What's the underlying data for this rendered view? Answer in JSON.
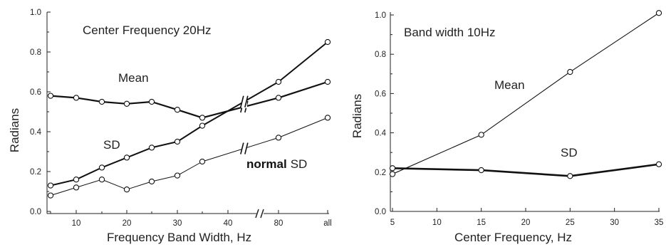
{
  "chart_data": [
    {
      "type": "line",
      "title": "Center Frequency  20Hz",
      "xlabel": "Frequency Band Width, Hz",
      "ylabel": "Radians",
      "ylim": [
        0,
        1.0
      ],
      "yticks": [
        "0.0",
        "0.2",
        "0.4",
        "0.6",
        "0.8",
        "1.0"
      ],
      "xticks": [
        "10",
        "20",
        "30",
        "40",
        "80",
        "all"
      ],
      "x_axis_break": "between 40 and 80",
      "categories": [
        "5",
        "10",
        "15",
        "20",
        "25",
        "30",
        "35",
        "40",
        "80",
        "all"
      ],
      "series": [
        {
          "name": "Mean",
          "values": [
            0.58,
            0.57,
            0.55,
            0.54,
            0.55,
            0.51,
            0.47,
            null,
            0.57,
            0.65
          ]
        },
        {
          "name": "SD",
          "values": [
            0.13,
            0.16,
            0.22,
            0.27,
            0.32,
            0.35,
            0.43,
            null,
            0.65,
            0.85
          ]
        },
        {
          "name": "normal SD",
          "values": [
            0.08,
            0.12,
            0.16,
            0.11,
            0.15,
            0.18,
            0.25,
            null,
            0.37,
            0.47
          ]
        }
      ],
      "series_labels": {
        "mean": "Mean",
        "sd": "SD",
        "normal": "normal",
        "normal_sd": "SD"
      }
    },
    {
      "type": "line",
      "title": "Band width  10Hz",
      "xlabel": "Center Frequency, Hz",
      "ylabel": "Radians",
      "ylim": [
        0,
        1.0
      ],
      "xlim": [
        5,
        35
      ],
      "yticks": [
        "0.0",
        "0.2",
        "0.4",
        "0.6",
        "0.8",
        "1.0"
      ],
      "xticks": [
        "5",
        "10",
        "15",
        "20",
        "25",
        "30",
        "35"
      ],
      "series": [
        {
          "name": "Mean",
          "x": [
            5,
            15,
            25,
            35
          ],
          "values": [
            0.19,
            0.39,
            0.71,
            1.01
          ]
        },
        {
          "name": "SD",
          "x": [
            5,
            15,
            25,
            35
          ],
          "values": [
            0.22,
            0.21,
            0.18,
            0.24
          ]
        }
      ],
      "series_labels": {
        "mean": "Mean",
        "sd": "SD"
      }
    }
  ]
}
